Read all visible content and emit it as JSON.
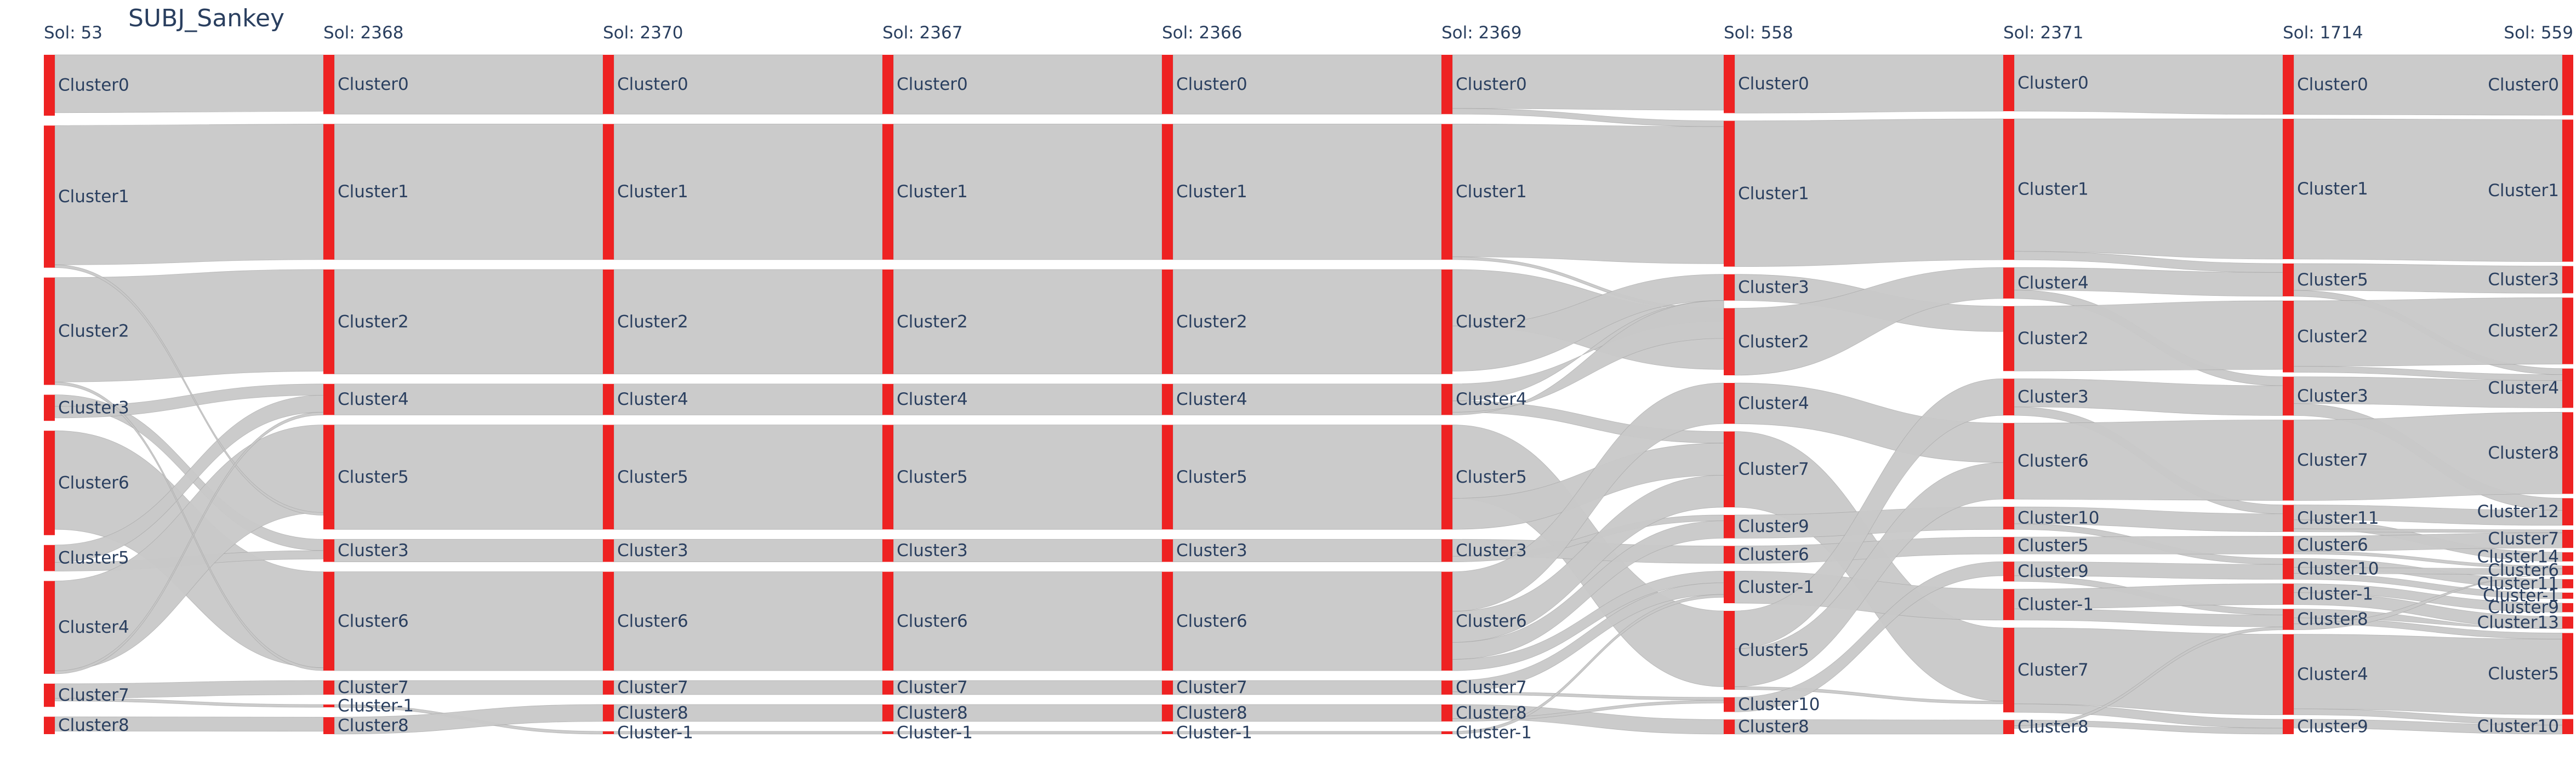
{
  "chart_data": {
    "type": "sankey",
    "title": "SUBJ_Sankey",
    "node_color": "#ee2222",
    "link_color": "#c8c8c8",
    "columns": [
      {
        "label": "Sol: 53",
        "nodes": [
          {
            "name": "Cluster0",
            "size": 105
          },
          {
            "name": "Cluster1",
            "size": 245
          },
          {
            "name": "Cluster2",
            "size": 185
          },
          {
            "name": "Cluster3",
            "size": 45
          },
          {
            "name": "Cluster6",
            "size": 180
          },
          {
            "name": "Cluster5",
            "size": 45
          },
          {
            "name": "Cluster4",
            "size": 160
          },
          {
            "name": "Cluster7",
            "size": 40
          },
          {
            "name": "Cluster8",
            "size": 30
          }
        ]
      },
      {
        "label": "Sol: 2368",
        "nodes": [
          {
            "name": "Cluster0",
            "size": 105
          },
          {
            "name": "Cluster1",
            "size": 240
          },
          {
            "name": "Cluster2",
            "size": 185
          },
          {
            "name": "Cluster4",
            "size": 55
          },
          {
            "name": "Cluster5",
            "size": 185
          },
          {
            "name": "Cluster3",
            "size": 40
          },
          {
            "name": "Cluster6",
            "size": 175
          },
          {
            "name": "Cluster7",
            "size": 25
          },
          {
            "name": "Cluster-1",
            "size": 5
          },
          {
            "name": "Cluster8",
            "size": 30
          }
        ]
      },
      {
        "label": "Sol: 2370",
        "nodes": [
          {
            "name": "Cluster0",
            "size": 105
          },
          {
            "name": "Cluster1",
            "size": 240
          },
          {
            "name": "Cluster2",
            "size": 185
          },
          {
            "name": "Cluster4",
            "size": 55
          },
          {
            "name": "Cluster5",
            "size": 185
          },
          {
            "name": "Cluster3",
            "size": 40
          },
          {
            "name": "Cluster6",
            "size": 175
          },
          {
            "name": "Cluster7",
            "size": 25
          },
          {
            "name": "Cluster8",
            "size": 30
          },
          {
            "name": "Cluster-1",
            "size": 5
          }
        ]
      },
      {
        "label": "Sol: 2367",
        "nodes": [
          {
            "name": "Cluster0",
            "size": 105
          },
          {
            "name": "Cluster1",
            "size": 240
          },
          {
            "name": "Cluster2",
            "size": 185
          },
          {
            "name": "Cluster4",
            "size": 55
          },
          {
            "name": "Cluster5",
            "size": 185
          },
          {
            "name": "Cluster3",
            "size": 40
          },
          {
            "name": "Cluster6",
            "size": 175
          },
          {
            "name": "Cluster7",
            "size": 25
          },
          {
            "name": "Cluster8",
            "size": 30
          },
          {
            "name": "Cluster-1",
            "size": 5
          }
        ]
      },
      {
        "label": "Sol: 2366",
        "nodes": [
          {
            "name": "Cluster0",
            "size": 105
          },
          {
            "name": "Cluster1",
            "size": 240
          },
          {
            "name": "Cluster2",
            "size": 185
          },
          {
            "name": "Cluster4",
            "size": 55
          },
          {
            "name": "Cluster5",
            "size": 185
          },
          {
            "name": "Cluster3",
            "size": 40
          },
          {
            "name": "Cluster6",
            "size": 175
          },
          {
            "name": "Cluster7",
            "size": 25
          },
          {
            "name": "Cluster8",
            "size": 30
          },
          {
            "name": "Cluster-1",
            "size": 5
          }
        ]
      },
      {
        "label": "Sol: 2369",
        "nodes": [
          {
            "name": "Cluster0",
            "size": 105
          },
          {
            "name": "Cluster1",
            "size": 240
          },
          {
            "name": "Cluster2",
            "size": 185
          },
          {
            "name": "Cluster4",
            "size": 55
          },
          {
            "name": "Cluster5",
            "size": 185
          },
          {
            "name": "Cluster3",
            "size": 40
          },
          {
            "name": "Cluster6",
            "size": 175
          },
          {
            "name": "Cluster7",
            "size": 25
          },
          {
            "name": "Cluster8",
            "size": 30
          },
          {
            "name": "Cluster-1",
            "size": 5
          }
        ]
      },
      {
        "label": "Sol: 558",
        "nodes": [
          {
            "name": "Cluster0",
            "size": 100
          },
          {
            "name": "Cluster1",
            "size": 250
          },
          {
            "name": "Cluster3",
            "size": 45
          },
          {
            "name": "Cluster2",
            "size": 115
          },
          {
            "name": "Cluster4",
            "size": 70
          },
          {
            "name": "Cluster7",
            "size": 130
          },
          {
            "name": "Cluster9",
            "size": 40
          },
          {
            "name": "Cluster6",
            "size": 30
          },
          {
            "name": "Cluster-1",
            "size": 55
          },
          {
            "name": "Cluster5",
            "size": 135
          },
          {
            "name": "Cluster10",
            "size": 25
          },
          {
            "name": "Cluster8",
            "size": 25
          }
        ]
      },
      {
        "label": "Sol: 2371",
        "nodes": [
          {
            "name": "Cluster0",
            "size": 100
          },
          {
            "name": "Cluster1",
            "size": 250
          },
          {
            "name": "Cluster4",
            "size": 55
          },
          {
            "name": "Cluster2",
            "size": 115
          },
          {
            "name": "Cluster3",
            "size": 65
          },
          {
            "name": "Cluster6",
            "size": 135
          },
          {
            "name": "Cluster10",
            "size": 40
          },
          {
            "name": "Cluster5",
            "size": 30
          },
          {
            "name": "Cluster9",
            "size": 35
          },
          {
            "name": "Cluster-1",
            "size": 55
          },
          {
            "name": "Cluster7",
            "size": 150
          },
          {
            "name": "Cluster8",
            "size": 25
          }
        ]
      },
      {
        "label": "Sol: 1714",
        "nodes": [
          {
            "name": "Cluster0",
            "size": 100
          },
          {
            "name": "Cluster1",
            "size": 235
          },
          {
            "name": "Cluster5",
            "size": 55
          },
          {
            "name": "Cluster2",
            "size": 120
          },
          {
            "name": "Cluster3",
            "size": 65
          },
          {
            "name": "Cluster7",
            "size": 135
          },
          {
            "name": "Cluster11",
            "size": 45
          },
          {
            "name": "Cluster6",
            "size": 30
          },
          {
            "name": "Cluster10",
            "size": 35
          },
          {
            "name": "Cluster-1",
            "size": 35
          },
          {
            "name": "Cluster8",
            "size": 35
          },
          {
            "name": "Cluster4",
            "size": 135
          },
          {
            "name": "Cluster9",
            "size": 25
          }
        ]
      },
      {
        "label": "Sol: 559",
        "nodes": [
          {
            "name": "Cluster0",
            "size": 100
          },
          {
            "name": "Cluster1",
            "size": 235
          },
          {
            "name": "Cluster3",
            "size": 45
          },
          {
            "name": "Cluster2",
            "size": 110
          },
          {
            "name": "Cluster4",
            "size": 65
          },
          {
            "name": "Cluster8",
            "size": 135
          },
          {
            "name": "Cluster12",
            "size": 45
          },
          {
            "name": "Cluster7",
            "size": 30
          },
          {
            "name": "Cluster14",
            "size": 15
          },
          {
            "name": "Cluster6",
            "size": 15
          },
          {
            "name": "Cluster11",
            "size": 15
          },
          {
            "name": "Cluster-1",
            "size": 10
          },
          {
            "name": "Cluster9",
            "size": 15
          },
          {
            "name": "Cluster13",
            "size": 20
          },
          {
            "name": "Cluster5",
            "size": 135
          },
          {
            "name": "Cluster10",
            "size": 25
          }
        ]
      }
    ],
    "links": [
      [
        0,
        0,
        1,
        0,
        100
      ],
      [
        0,
        1,
        1,
        1,
        240
      ],
      [
        0,
        2,
        1,
        2,
        180
      ],
      [
        0,
        3,
        1,
        5,
        20
      ],
      [
        0,
        3,
        1,
        3,
        20
      ],
      [
        0,
        4,
        1,
        6,
        170
      ],
      [
        0,
        5,
        1,
        3,
        30
      ],
      [
        0,
        5,
        1,
        5,
        15
      ],
      [
        0,
        6,
        1,
        4,
        155
      ],
      [
        0,
        7,
        1,
        7,
        25
      ],
      [
        0,
        7,
        1,
        8,
        5
      ],
      [
        0,
        8,
        1,
        9,
        25
      ],
      [
        0,
        1,
        1,
        4,
        5
      ],
      [
        0,
        2,
        1,
        6,
        5
      ],
      [
        0,
        6,
        1,
        3,
        5
      ],
      [
        1,
        0,
        2,
        0,
        105
      ],
      [
        1,
        1,
        2,
        1,
        240
      ],
      [
        1,
        2,
        2,
        2,
        185
      ],
      [
        1,
        3,
        2,
        3,
        55
      ],
      [
        1,
        4,
        2,
        4,
        185
      ],
      [
        1,
        5,
        2,
        5,
        40
      ],
      [
        1,
        6,
        2,
        6,
        175
      ],
      [
        1,
        7,
        2,
        7,
        25
      ],
      [
        1,
        8,
        2,
        9,
        5
      ],
      [
        1,
        9,
        2,
        8,
        30
      ],
      [
        2,
        0,
        3,
        0,
        105
      ],
      [
        2,
        1,
        3,
        1,
        240
      ],
      [
        2,
        2,
        3,
        2,
        185
      ],
      [
        2,
        3,
        3,
        3,
        55
      ],
      [
        2,
        4,
        3,
        4,
        185
      ],
      [
        2,
        5,
        3,
        5,
        40
      ],
      [
        2,
        6,
        3,
        6,
        175
      ],
      [
        2,
        7,
        3,
        7,
        25
      ],
      [
        2,
        8,
        3,
        8,
        30
      ],
      [
        2,
        9,
        3,
        9,
        5
      ],
      [
        3,
        0,
        4,
        0,
        105
      ],
      [
        3,
        1,
        4,
        1,
        240
      ],
      [
        3,
        2,
        4,
        2,
        185
      ],
      [
        3,
        3,
        4,
        3,
        55
      ],
      [
        3,
        4,
        4,
        4,
        185
      ],
      [
        3,
        5,
        4,
        5,
        40
      ],
      [
        3,
        6,
        4,
        6,
        175
      ],
      [
        3,
        7,
        4,
        7,
        25
      ],
      [
        3,
        8,
        4,
        8,
        30
      ],
      [
        3,
        9,
        4,
        9,
        5
      ],
      [
        4,
        0,
        5,
        0,
        105
      ],
      [
        4,
        1,
        5,
        1,
        240
      ],
      [
        4,
        2,
        5,
        2,
        185
      ],
      [
        4,
        3,
        5,
        3,
        55
      ],
      [
        4,
        4,
        5,
        4,
        185
      ],
      [
        4,
        5,
        5,
        5,
        40
      ],
      [
        4,
        6,
        5,
        6,
        175
      ],
      [
        4,
        7,
        5,
        7,
        25
      ],
      [
        4,
        8,
        5,
        8,
        30
      ],
      [
        4,
        9,
        5,
        9,
        5
      ],
      [
        5,
        0,
        6,
        0,
        95
      ],
      [
        5,
        0,
        6,
        1,
        10
      ],
      [
        5,
        1,
        6,
        1,
        235
      ],
      [
        5,
        1,
        6,
        3,
        5
      ],
      [
        5,
        2,
        6,
        3,
        100
      ],
      [
        5,
        2,
        6,
        2,
        80
      ],
      [
        5,
        3,
        6,
        2,
        30
      ],
      [
        5,
        3,
        6,
        5,
        20
      ],
      [
        5,
        3,
        6,
        2,
        5
      ],
      [
        5,
        4,
        6,
        9,
        130
      ],
      [
        5,
        4,
        6,
        5,
        55
      ],
      [
        5,
        5,
        6,
        7,
        30
      ],
      [
        5,
        5,
        6,
        6,
        10
      ],
      [
        5,
        6,
        6,
        4,
        70
      ],
      [
        5,
        6,
        6,
        5,
        55
      ],
      [
        5,
        6,
        6,
        6,
        30
      ],
      [
        5,
        6,
        6,
        8,
        20
      ],
      [
        5,
        7,
        6,
        8,
        20
      ],
      [
        5,
        7,
        6,
        10,
        5
      ],
      [
        5,
        8,
        6,
        11,
        25
      ],
      [
        5,
        8,
        6,
        10,
        5
      ],
      [
        5,
        9,
        6,
        8,
        5
      ],
      [
        6,
        0,
        7,
        0,
        100
      ],
      [
        6,
        1,
        7,
        1,
        250
      ],
      [
        6,
        2,
        7,
        3,
        45
      ],
      [
        6,
        3,
        7,
        2,
        115
      ],
      [
        6,
        4,
        7,
        5,
        70
      ],
      [
        6,
        5,
        7,
        10,
        130
      ],
      [
        6,
        6,
        7,
        6,
        40
      ],
      [
        6,
        7,
        7,
        7,
        30
      ],
      [
        6,
        8,
        7,
        9,
        55
      ],
      [
        6,
        9,
        7,
        4,
        65
      ],
      [
        6,
        9,
        7,
        5,
        65
      ],
      [
        6,
        9,
        7,
        10,
        5
      ],
      [
        6,
        10,
        7,
        8,
        25
      ],
      [
        6,
        11,
        7,
        11,
        25
      ],
      [
        7,
        0,
        8,
        0,
        100
      ],
      [
        7,
        1,
        8,
        1,
        235
      ],
      [
        7,
        1,
        8,
        2,
        15
      ],
      [
        7,
        2,
        8,
        2,
        40
      ],
      [
        7,
        2,
        8,
        4,
        15
      ],
      [
        7,
        3,
        8,
        3,
        115
      ],
      [
        7,
        4,
        8,
        4,
        50
      ],
      [
        7,
        4,
        8,
        6,
        15
      ],
      [
        7,
        5,
        8,
        5,
        135
      ],
      [
        7,
        6,
        8,
        6,
        30
      ],
      [
        7,
        6,
        8,
        8,
        10
      ],
      [
        7,
        7,
        8,
        7,
        30
      ],
      [
        7,
        8,
        8,
        8,
        25
      ],
      [
        7,
        8,
        8,
        10,
        10
      ],
      [
        7,
        9,
        8,
        9,
        35
      ],
      [
        7,
        9,
        8,
        10,
        20
      ],
      [
        7,
        10,
        8,
        11,
        135
      ],
      [
        7,
        10,
        8,
        12,
        15
      ],
      [
        7,
        11,
        8,
        12,
        10
      ],
      [
        7,
        11,
        8,
        10,
        5
      ],
      [
        8,
        0,
        9,
        0,
        100
      ],
      [
        8,
        1,
        9,
        1,
        235
      ],
      [
        8,
        2,
        9,
        2,
        45
      ],
      [
        8,
        2,
        9,
        4,
        10
      ],
      [
        8,
        3,
        9,
        3,
        110
      ],
      [
        8,
        3,
        9,
        4,
        10
      ],
      [
        8,
        4,
        9,
        4,
        45
      ],
      [
        8,
        4,
        9,
        6,
        20
      ],
      [
        8,
        5,
        9,
        5,
        135
      ],
      [
        8,
        6,
        9,
        6,
        25
      ],
      [
        8,
        6,
        9,
        8,
        15
      ],
      [
        8,
        6,
        9,
        7,
        5
      ],
      [
        8,
        7,
        9,
        7,
        25
      ],
      [
        8,
        7,
        9,
        9,
        5
      ],
      [
        8,
        8,
        9,
        10,
        15
      ],
      [
        8,
        8,
        9,
        9,
        10
      ],
      [
        8,
        8,
        9,
        11,
        10
      ],
      [
        8,
        9,
        9,
        12,
        15
      ],
      [
        8,
        9,
        9,
        13,
        20
      ],
      [
        8,
        10,
        9,
        13,
        15
      ],
      [
        8,
        10,
        9,
        14,
        10
      ],
      [
        8,
        10,
        9,
        9,
        10
      ],
      [
        8,
        11,
        9,
        14,
        125
      ],
      [
        8,
        11,
        9,
        15,
        10
      ],
      [
        8,
        12,
        9,
        15,
        15
      ]
    ]
  }
}
